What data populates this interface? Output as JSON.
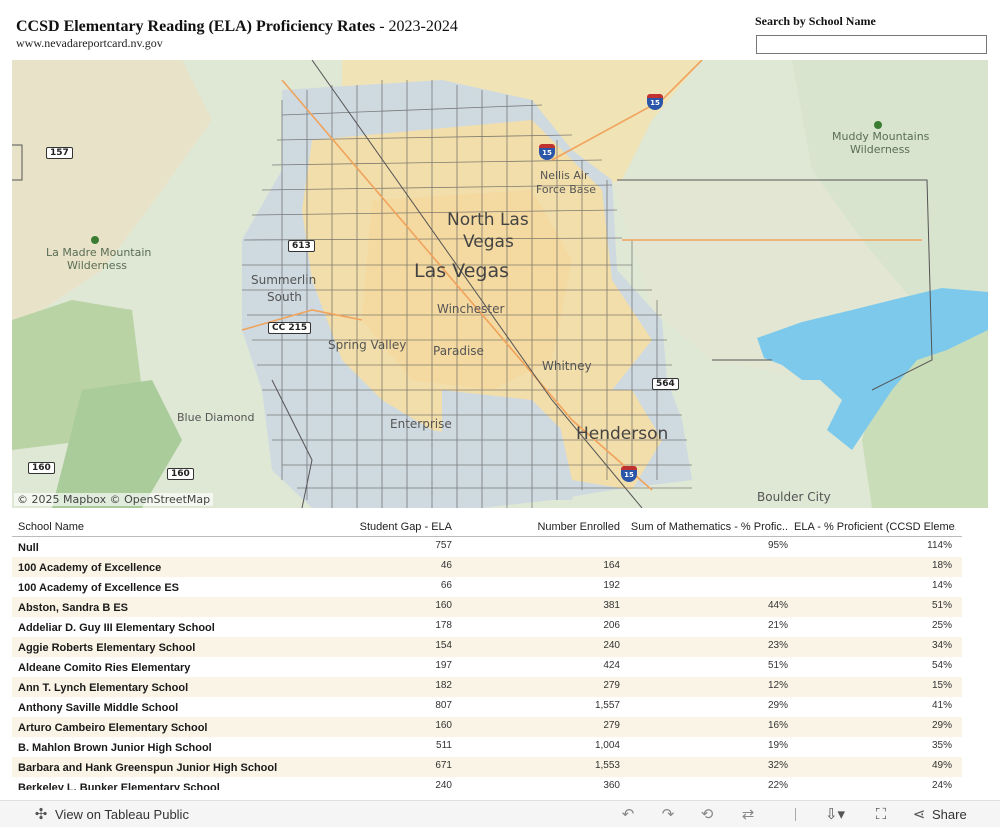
{
  "header": {
    "title": "CCSD Elementary Reading (ELA) Proficiency Rates",
    "title_year": " - 2023-2024",
    "subtitle": "www.nevadareportcard.nv.gov"
  },
  "search": {
    "label": "Search by School Name",
    "value": "",
    "placeholder": ""
  },
  "map": {
    "attribution": "© 2025 Mapbox © OpenStreetMap",
    "labels": {
      "north_las_vegas": "North Las",
      "north_las_vegas2": "Vegas",
      "las_vegas": "Las Vegas",
      "summerlin": "Summerlin",
      "summerlin2": "South",
      "winchester": "Winchester",
      "spring_valley": "Spring Valley",
      "paradise": "Paradise",
      "whitney": "Whitney",
      "enterprise": "Enterprise",
      "henderson": "Henderson",
      "blue_diamond": "Blue Diamond",
      "boulder_city": "Boulder City",
      "nellis": "Nellis Air",
      "nellis2": "Force Base",
      "la_madre": "La Madre Mountain",
      "la_madre2": "Wilderness",
      "muddy": "Muddy Mountains",
      "muddy2": "Wilderness"
    },
    "shields": {
      "r157": "157",
      "r613": "613",
      "cc215": "CC 215",
      "r160a": "160",
      "r160b": "160",
      "r564": "564",
      "i15a": "15",
      "i15b": "15",
      "i15c": "15"
    }
  },
  "table": {
    "headers": {
      "name": "School Name",
      "gap": "Student Gap - ELA",
      "enrolled": "Number Enrolled",
      "math": "Sum of Mathematics - % Profic..",
      "ela": "ELA - % Proficient (CCSD Eleme.."
    },
    "rows": [
      {
        "name": "Null",
        "gap": "757",
        "enrolled": "",
        "math": "95%",
        "ela": "114%"
      },
      {
        "name": "100 Academy of Excellence",
        "gap": "46",
        "enrolled": "164",
        "math": "",
        "ela": "18%"
      },
      {
        "name": "100 Academy of Excellence ES",
        "gap": "66",
        "enrolled": "192",
        "math": "",
        "ela": "14%"
      },
      {
        "name": "Abston, Sandra B ES",
        "gap": "160",
        "enrolled": "381",
        "math": "44%",
        "ela": "51%"
      },
      {
        "name": "Addeliar D. Guy III Elementary School",
        "gap": "178",
        "enrolled": "206",
        "math": "21%",
        "ela": "25%"
      },
      {
        "name": "Aggie Roberts Elementary School",
        "gap": "154",
        "enrolled": "240",
        "math": "23%",
        "ela": "34%"
      },
      {
        "name": "Aldeane Comito Ries Elementary",
        "gap": "197",
        "enrolled": "424",
        "math": "51%",
        "ela": "54%"
      },
      {
        "name": "Ann T. Lynch Elementary School",
        "gap": "182",
        "enrolled": "279",
        "math": "12%",
        "ela": "15%"
      },
      {
        "name": "Anthony Saville Middle School",
        "gap": "807",
        "enrolled": "1,557",
        "math": "29%",
        "ela": "41%"
      },
      {
        "name": "Arturo Cambeiro Elementary School",
        "gap": "160",
        "enrolled": "279",
        "math": "16%",
        "ela": "29%"
      },
      {
        "name": "B. Mahlon Brown Junior High School",
        "gap": "511",
        "enrolled": "1,004",
        "math": "19%",
        "ela": "35%"
      },
      {
        "name": "Barbara and Hank Greenspun Junior High School",
        "gap": "671",
        "enrolled": "1,553",
        "math": "32%",
        "ela": "49%"
      },
      {
        "name": "Berkeley L. Bunker Elementary School",
        "gap": "240",
        "enrolled": "360",
        "math": "22%",
        "ela": "24%"
      }
    ]
  },
  "toolbar": {
    "view_label": "View on Tableau Public",
    "share_label": "Share"
  }
}
